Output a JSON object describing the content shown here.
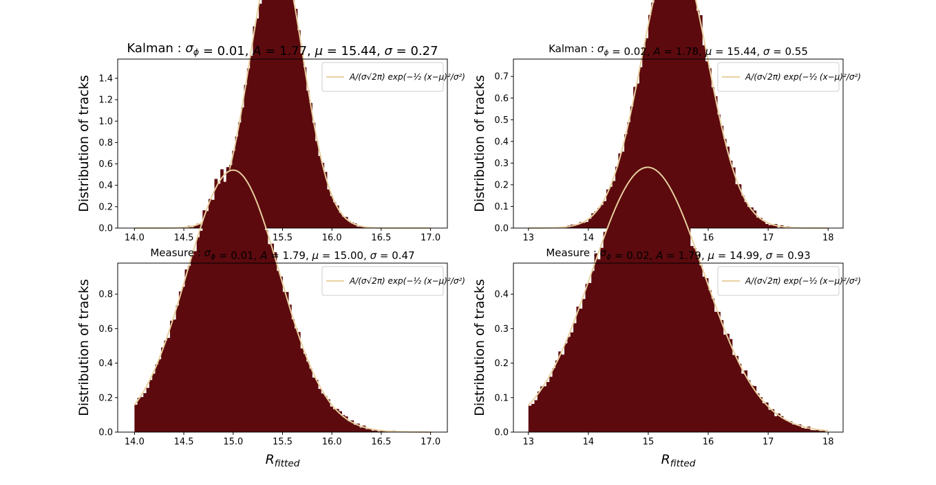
{
  "colors": {
    "bar": "#5c0a0e",
    "fit": "#e8d0a0"
  },
  "chart_data": [
    {
      "type": "bar",
      "title": "Kalman : σ_ϕ = 0.01, A = 1.77, μ = 15.44, σ = 0.27",
      "xlabel": "",
      "ylabel": "Distribution of tracks",
      "xlim": [
        13.83,
        17.17
      ],
      "ylim": [
        0,
        1.58
      ],
      "xticks": [
        "14.0",
        "14.5",
        "15.0",
        "15.5",
        "16.0",
        "16.5",
        "17.0"
      ],
      "yticks": [
        "0.0",
        "0.2",
        "0.4",
        "0.6",
        "0.8",
        "1.0",
        "1.2",
        "1.4"
      ],
      "hist": {
        "range": [
          14,
          17
        ],
        "bins": 100,
        "seed": 11
      },
      "fit": {
        "A": 1.77,
        "mu": 15.44,
        "sigma": 0.27,
        "label": "A/(σ√2π) exp(−½ (x−μ)²/σ²)"
      },
      "legend": "upper right",
      "grid": false
    },
    {
      "type": "bar",
      "title": "Kalman : σ_ϕ = 0.02, A = 1.78, μ = 15.44, σ = 0.55",
      "xlabel": "",
      "ylabel": "Distribution of tracks",
      "xlim": [
        12.75,
        18.25
      ],
      "ylim": [
        0,
        0.78
      ],
      "xticks": [
        "13",
        "14",
        "15",
        "16",
        "17",
        "18"
      ],
      "yticks": [
        "0.0",
        "0.1",
        "0.2",
        "0.3",
        "0.4",
        "0.5",
        "0.6",
        "0.7"
      ],
      "hist": {
        "range": [
          13,
          18
        ],
        "bins": 100,
        "seed": 23
      },
      "fit": {
        "A": 1.78,
        "mu": 15.44,
        "sigma": 0.55,
        "label": "A/(σ√2π) exp(−½ (x−μ)²/σ²)"
      },
      "legend": "upper right",
      "grid": false
    },
    {
      "type": "bar",
      "title": "Measure : σ_ϕ = 0.01, A = 1.79, μ = 15.00, σ = 0.47",
      "xlabel": "R_fitted",
      "ylabel": "Distribution of tracks",
      "xlim": [
        13.83,
        17.17
      ],
      "ylim": [
        0,
        0.98
      ],
      "xticks": [
        "14.0",
        "14.5",
        "15.0",
        "15.5",
        "16.0",
        "16.5",
        "17.0"
      ],
      "yticks": [
        "0.0",
        "0.2",
        "0.4",
        "0.6",
        "0.8"
      ],
      "hist": {
        "range": [
          14,
          17
        ],
        "bins": 100,
        "seed": 37
      },
      "fit": {
        "A": 1.79,
        "mu": 15.0,
        "sigma": 0.47,
        "label": "A/(σ√2π) exp(−½ (x−μ)²/σ²)"
      },
      "legend": "upper right",
      "grid": false
    },
    {
      "type": "bar",
      "title": "Measure : σ_ϕ = 0.02, A = 1.79, μ = 14.99, σ = 0.93",
      "xlabel": "R_fitted",
      "ylabel": "Distribution of tracks",
      "xlim": [
        12.75,
        18.25
      ],
      "ylim": [
        0,
        0.49
      ],
      "xticks": [
        "13",
        "14",
        "15",
        "16",
        "17",
        "18"
      ],
      "yticks": [
        "0.0",
        "0.1",
        "0.2",
        "0.3",
        "0.4"
      ],
      "hist": {
        "range": [
          13,
          18
        ],
        "bins": 100,
        "seed": 53
      },
      "fit": {
        "A": 1.79,
        "mu": 14.99,
        "sigma": 0.93,
        "label": "A/(σ√2π) exp(−½ (x−μ)²/σ²)"
      },
      "legend": "upper right",
      "grid": false
    }
  ]
}
